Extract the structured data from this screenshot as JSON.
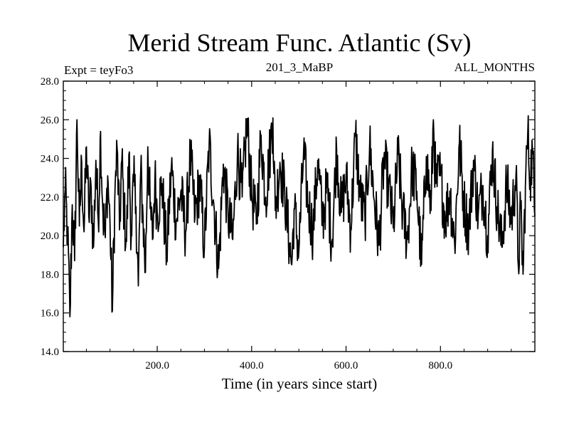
{
  "chart_data": {
    "type": "line",
    "title": "Merid Stream Func. Atlantic (Sv)",
    "subtitle_left": "Expt = teyFo3",
    "subtitle_center": "201_3_MaBP",
    "subtitle_right": "ALL_MONTHS",
    "xlabel": "Time (in years since start)",
    "ylabel": "",
    "xlim": [
      1,
      1000
    ],
    "ylim": [
      14.0,
      28.0
    ],
    "x_ticks": [
      200,
      400,
      600,
      800
    ],
    "x_tick_labels": [
      "200.0",
      "400.0",
      "600.0",
      "800.0"
    ],
    "y_ticks": [
      14,
      16,
      18,
      20,
      22,
      24,
      26,
      28
    ],
    "y_tick_labels": [
      "14.0",
      "16.0",
      "18.0",
      "20.0",
      "22.0",
      "24.0",
      "26.0",
      "28.0"
    ],
    "grid": false,
    "series": [
      {
        "name": "teyFo3",
        "x": [
          1,
          5,
          10,
          15,
          20,
          25,
          30,
          35,
          40,
          45,
          50,
          55,
          60,
          65,
          70,
          75,
          80,
          85,
          90,
          95,
          100,
          105,
          110,
          115,
          120,
          125,
          130,
          135,
          140,
          145,
          150,
          155,
          160,
          165,
          170,
          175,
          180,
          185,
          190,
          195,
          200,
          210,
          220,
          230,
          240,
          250,
          260,
          270,
          280,
          290,
          300,
          310,
          320,
          330,
          340,
          350,
          360,
          370,
          380,
          390,
          400,
          410,
          420,
          430,
          440,
          445,
          450,
          460,
          470,
          480,
          485,
          490,
          500,
          510,
          520,
          530,
          540,
          550,
          560,
          570,
          580,
          590,
          600,
          610,
          620,
          630,
          640,
          650,
          660,
          670,
          680,
          690,
          700,
          710,
          720,
          730,
          740,
          750,
          760,
          770,
          780,
          785,
          790,
          800,
          810,
          820,
          830,
          840,
          850,
          860,
          870,
          880,
          890,
          900,
          910,
          920,
          930,
          940,
          950,
          960,
          965,
          970,
          975,
          980,
          985,
          990,
          995,
          1000
        ],
        "values": [
          19.4,
          22.4,
          20.1,
          15.8,
          21.6,
          18.7,
          26.0,
          20.5,
          23.8,
          20.2,
          24.6,
          21.0,
          22.5,
          19.4,
          23.9,
          20.8,
          25.4,
          21.2,
          19.9,
          23.1,
          20.6,
          16.1,
          21.8,
          24.5,
          20.3,
          23.9,
          21.1,
          19.7,
          24.2,
          20.0,
          22.8,
          21.5,
          17.4,
          23.3,
          20.9,
          18.1,
          24.6,
          21.4,
          19.8,
          23.0,
          21.2,
          22.7,
          19.0,
          23.6,
          20.7,
          22.3,
          20.2,
          24.1,
          21.0,
          22.8,
          19.4,
          24.8,
          21.6,
          18.3,
          23.7,
          21.1,
          19.8,
          24.4,
          22.0,
          25.9,
          22.2,
          20.6,
          25.2,
          22.0,
          24.7,
          26.1,
          21.3,
          23.8,
          22.2,
          19.6,
          18.5,
          21.4,
          19.2,
          24.3,
          21.6,
          20.2,
          23.9,
          20.8,
          22.5,
          19.7,
          24.5,
          21.2,
          23.0,
          20.4,
          25.2,
          22.0,
          20.9,
          24.7,
          21.8,
          19.5,
          23.9,
          22.6,
          20.4,
          24.2,
          21.2,
          19.8,
          23.6,
          22.3,
          18.5,
          24.1,
          21.3,
          26.0,
          22.7,
          23.1,
          20.9,
          22.3,
          19.6,
          24.8,
          21.6,
          20.3,
          23.9,
          21.1,
          22.6,
          20.0,
          24.4,
          21.5,
          19.4,
          22.7,
          20.8,
          23.2,
          18.4,
          21.4,
          18.0,
          22.6,
          25.3,
          23.0,
          24.4,
          21.0
        ]
      }
    ]
  }
}
